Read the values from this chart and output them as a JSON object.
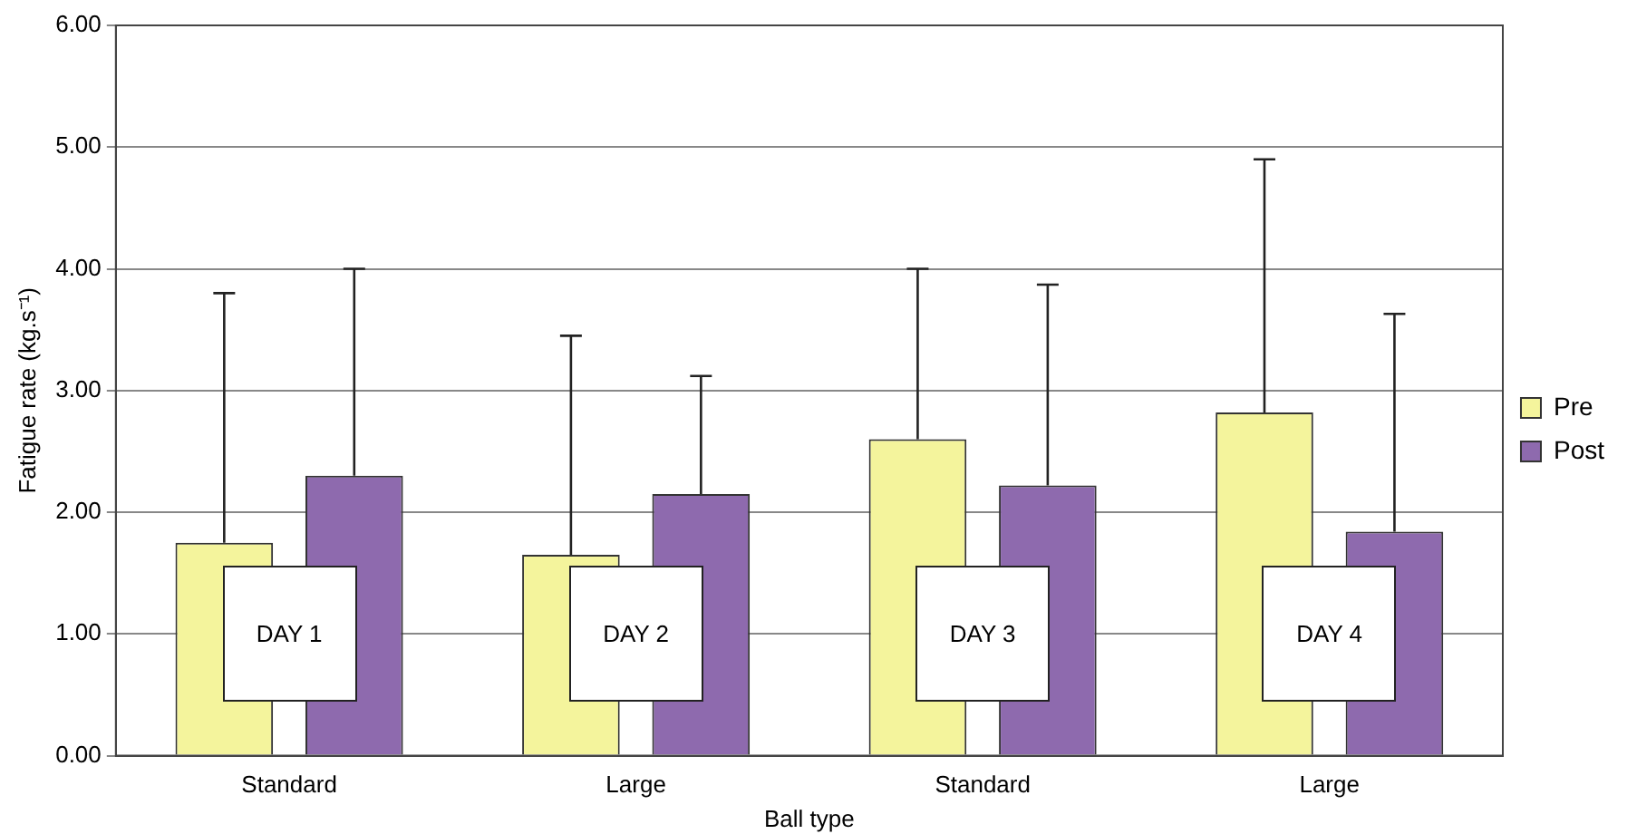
{
  "chart_data": {
    "type": "bar",
    "xlabel": "Ball type",
    "ylabel": "Fatigue rate (kg.s⁻¹)",
    "categories": [
      "Standard",
      "Large",
      "Standard",
      "Large"
    ],
    "series": [
      {
        "name": "Pre",
        "color": "#f4f49c",
        "values": [
          1.75,
          1.65,
          2.6,
          2.82
        ],
        "errors": [
          [
            1.75,
            3.8
          ],
          [
            1.65,
            3.45
          ],
          [
            2.6,
            4.0
          ],
          [
            2.82,
            4.9
          ]
        ]
      },
      {
        "name": "Post",
        "color": "#8e6aae",
        "values": [
          2.3,
          2.15,
          2.22,
          1.84
        ],
        "errors": [
          [
            2.3,
            4.0
          ],
          [
            2.15,
            3.12
          ],
          [
            2.22,
            3.87
          ],
          [
            1.84,
            3.63
          ]
        ]
      }
    ],
    "ylim": [
      0,
      6
    ],
    "yticks": [
      {
        "value": 0,
        "label": "0.00"
      },
      {
        "value": 1,
        "label": "1.00"
      },
      {
        "value": 2,
        "label": "2.00"
      },
      {
        "value": 3,
        "label": "3.00"
      },
      {
        "value": 4,
        "label": "4.00"
      },
      {
        "value": 5,
        "label": "5.00"
      },
      {
        "value": 6,
        "label": "6.00"
      }
    ],
    "grid": "y",
    "legend": "right",
    "annotations": [
      "DAY 1",
      "DAY 2",
      "DAY 3",
      "DAY 4"
    ]
  }
}
